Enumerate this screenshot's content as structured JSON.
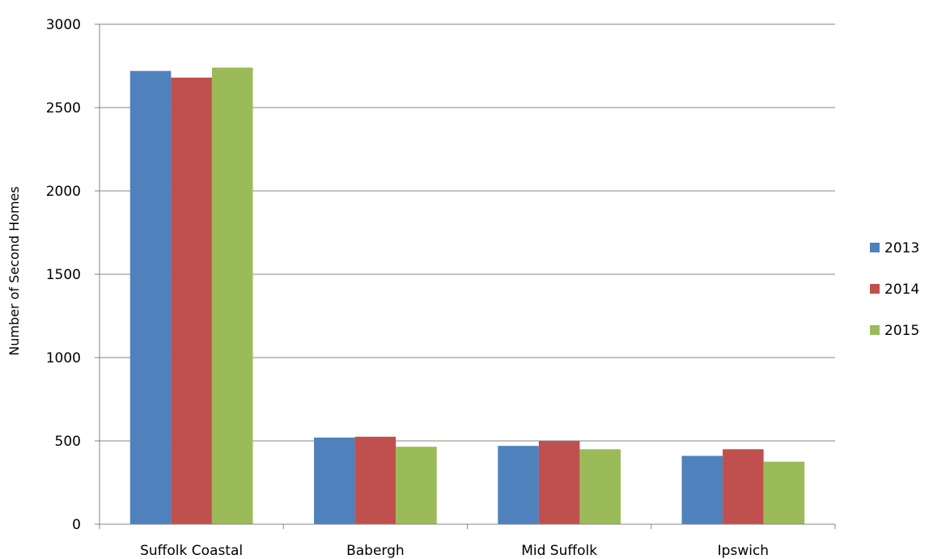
{
  "chart_data": {
    "type": "bar",
    "title": "",
    "xlabel": "",
    "ylabel": "Number of Second Homes",
    "ylim": [
      0,
      3000
    ],
    "yticks": [
      0,
      500,
      1000,
      1500,
      2000,
      2500,
      3000
    ],
    "grid": true,
    "legend_position": "right",
    "categories": [
      "Suffolk Coastal",
      "Babergh",
      "Mid Suffolk",
      "Ipswich"
    ],
    "series": [
      {
        "name": "2013",
        "color": "#4f81bd",
        "values": [
          2720,
          520,
          470,
          410
        ]
      },
      {
        "name": "2014",
        "color": "#c0504d",
        "values": [
          2680,
          525,
          500,
          450
        ]
      },
      {
        "name": "2015",
        "color": "#9bbb59",
        "values": [
          2740,
          465,
          450,
          375
        ]
      }
    ]
  }
}
